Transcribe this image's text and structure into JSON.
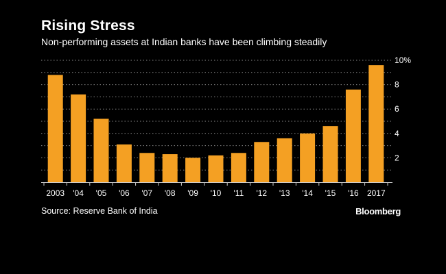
{
  "chart_data": {
    "type": "bar",
    "title": "Rising Stress",
    "subtitle": "Non-performing assets at Indian banks have been climbing steadily",
    "categories": [
      "2003",
      "'04",
      "'05",
      "'06",
      "'07",
      "'08",
      "'09",
      "'10",
      "'11",
      "'12",
      "'13",
      "'14",
      "'15",
      "'16",
      "2017"
    ],
    "values": [
      8.8,
      7.2,
      5.2,
      3.1,
      2.4,
      2.3,
      2.0,
      2.2,
      2.4,
      3.3,
      3.6,
      4.0,
      4.6,
      7.6,
      9.6
    ],
    "y_ticks": [
      2,
      4,
      6,
      8,
      10
    ],
    "y_tick_labels": [
      "2",
      "4",
      "6",
      "8",
      "10%"
    ],
    "ylim": [
      0,
      10
    ],
    "gridlines": "dotted",
    "xlabel": "",
    "ylabel": "",
    "bar_color": "#f4a023",
    "source": "Source: Reserve Bank of India",
    "brand": "Bloomberg"
  }
}
